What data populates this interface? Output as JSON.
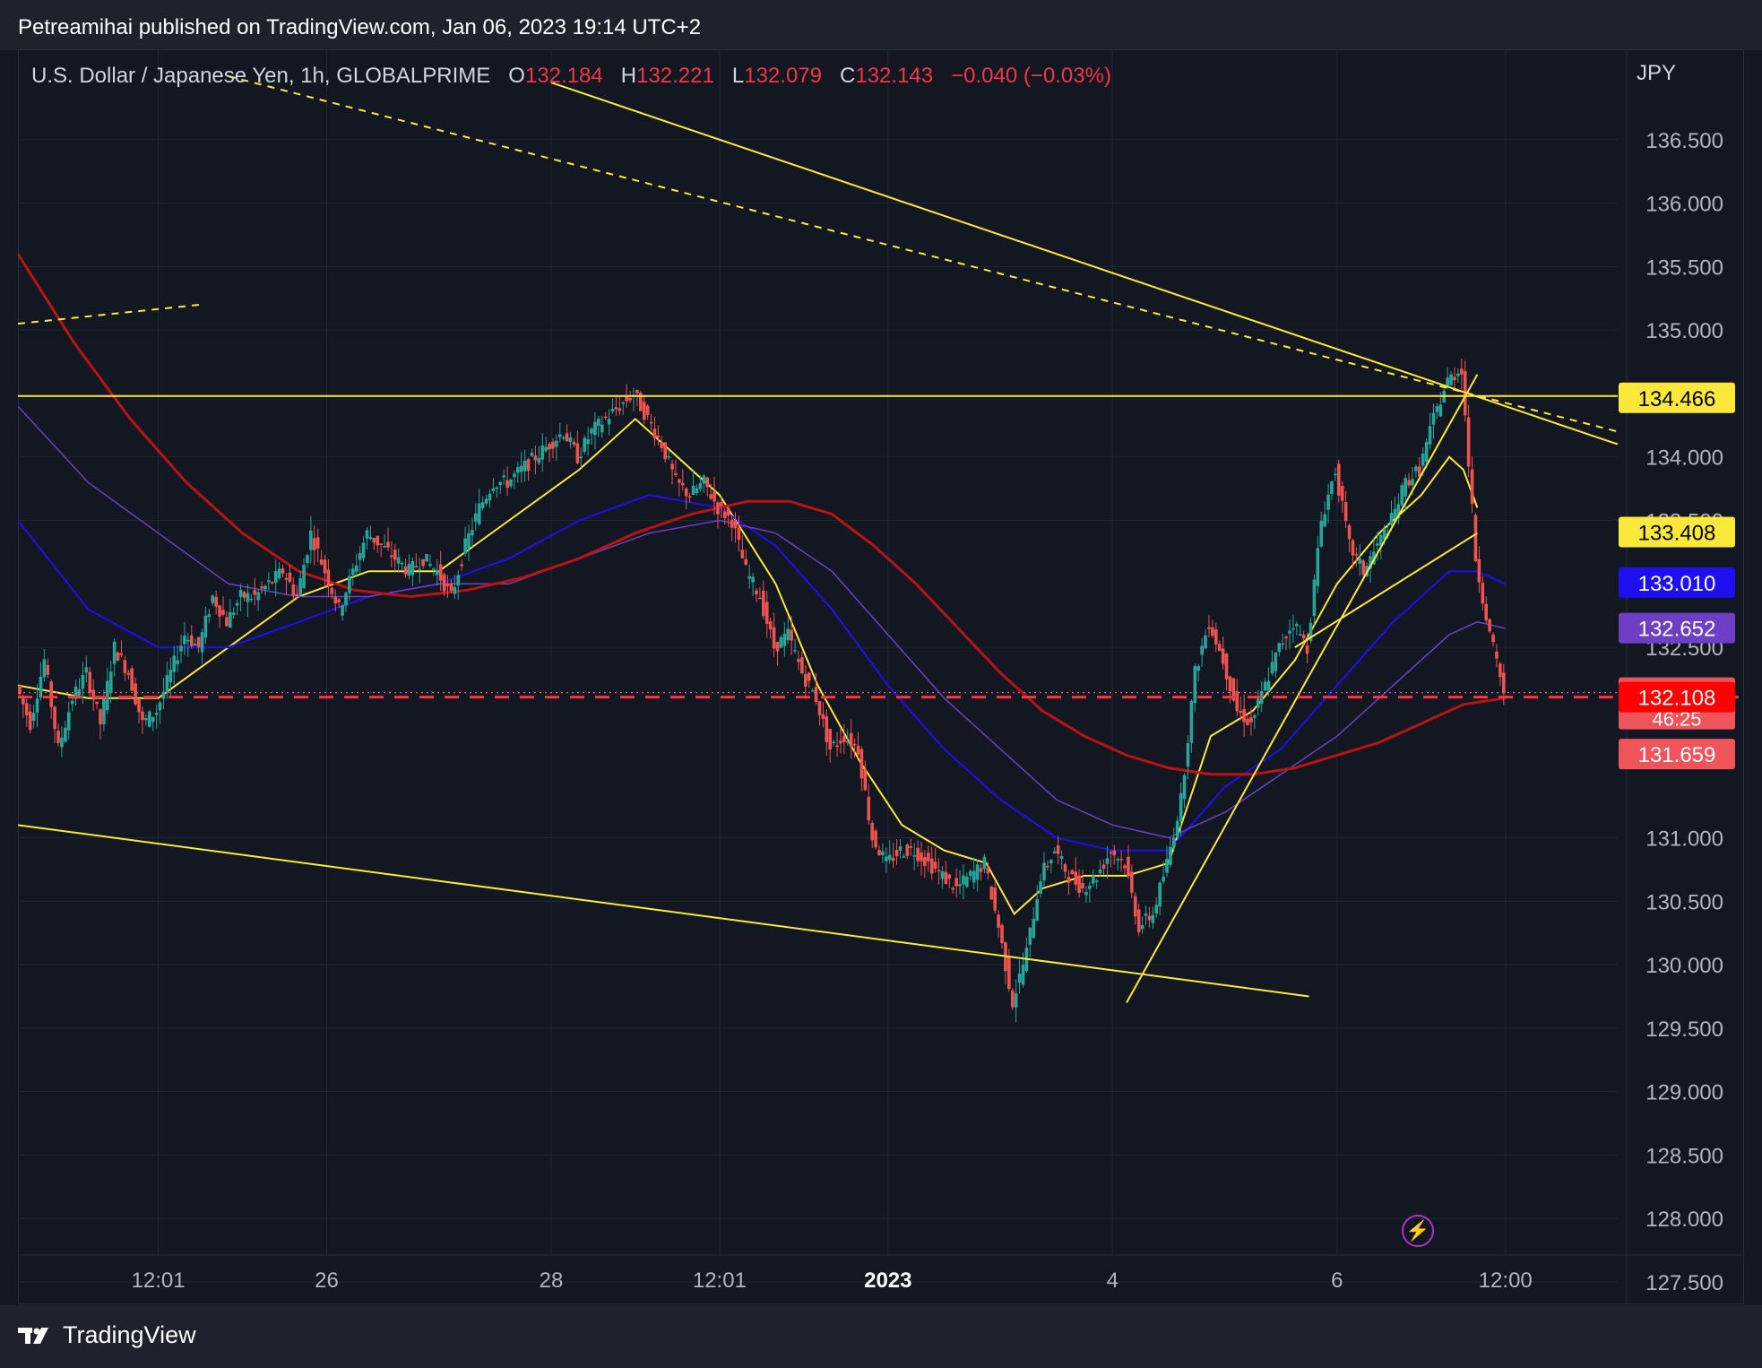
{
  "header": {
    "published_text": "Petreamihai published on TradingView.com, Jan 06, 2023 19:14 UTC+2"
  },
  "legend": {
    "symbol": "U.S. Dollar / Japanese Yen, 1h, GLOBALPRIME",
    "open_label": "O",
    "open": "132.184",
    "high_label": "H",
    "high": "132.221",
    "low_label": "L",
    "low": "132.079",
    "close_label": "C",
    "close": "132.143",
    "change": "−0.040 (−0.03%)"
  },
  "footer": {
    "brand": "TradingView"
  },
  "icons": {
    "brand_logo": "tradingview-logo-icon",
    "replay": "lightning-icon"
  },
  "chart_data": {
    "type": "candlestick",
    "currency": "JPY",
    "ylim": [
      127.5,
      137.0
    ],
    "y_ticks": [
      "136.500",
      "136.000",
      "135.500",
      "135.000",
      "134.000",
      "133.500",
      "132.500",
      "131.000",
      "130.500",
      "130.000",
      "129.500",
      "129.000",
      "128.500",
      "128.000",
      "127.500"
    ],
    "x_ticks": [
      {
        "label": "12:01",
        "t": 10
      },
      {
        "label": "26",
        "t": 22
      },
      {
        "label": "28",
        "t": 38
      },
      {
        "label": "12:01",
        "t": 50
      },
      {
        "label": "2023",
        "t": 62,
        "bold": true
      },
      {
        "label": "4",
        "t": 78
      },
      {
        "label": "6",
        "t": 94
      },
      {
        "label": "12:00",
        "t": 106
      }
    ],
    "x_range": [
      0,
      114
    ],
    "price_tags": [
      {
        "value": 134.466,
        "label": "134.466",
        "bg": "#fbe83b",
        "fg": "#000000"
      },
      {
        "value": 133.408,
        "label": "133.408",
        "bg": "#fbe83b",
        "fg": "#000000"
      },
      {
        "value": 133.01,
        "label": "133.010",
        "bg": "#1e0ff0",
        "fg": "#ffffff"
      },
      {
        "value": 132.652,
        "label": "132.652",
        "bg": "#6e3fc4",
        "fg": "#ffffff"
      },
      {
        "value": 132.143,
        "label": "132.143",
        "sub": "46:25",
        "bg": "#f0545b",
        "fg": "#ffffff"
      },
      {
        "value": 132.108,
        "label": "132.108",
        "bg": "#ff0000",
        "fg": "#ffffff"
      },
      {
        "value": 131.659,
        "label": "131.659",
        "bg": "#f0545b",
        "fg": "#ffffff"
      }
    ],
    "last_price": 132.143,
    "dashed_level": 132.108,
    "horizontal_level": 134.466,
    "price_path": [
      [
        0,
        132.2
      ],
      [
        1,
        131.9
      ],
      [
        2,
        132.4
      ],
      [
        3,
        131.7
      ],
      [
        4,
        132.1
      ],
      [
        5,
        132.3
      ],
      [
        6,
        131.9
      ],
      [
        7,
        132.5
      ],
      [
        8,
        132.3
      ],
      [
        9,
        131.9
      ],
      [
        10,
        132.0
      ],
      [
        11,
        132.3
      ],
      [
        12,
        132.6
      ],
      [
        13,
        132.5
      ],
      [
        14,
        132.9
      ],
      [
        15,
        132.7
      ],
      [
        16,
        132.9
      ],
      [
        17,
        132.9
      ],
      [
        18,
        133.0
      ],
      [
        19,
        133.1
      ],
      [
        20,
        132.9
      ],
      [
        21,
        133.4
      ],
      [
        22,
        133.1
      ],
      [
        23,
        132.8
      ],
      [
        24,
        133.1
      ],
      [
        25,
        133.4
      ],
      [
        26,
        133.3
      ],
      [
        27,
        133.2
      ],
      [
        28,
        133.1
      ],
      [
        29,
        133.2
      ],
      [
        30,
        133.1
      ],
      [
        31,
        132.9
      ],
      [
        32,
        133.3
      ],
      [
        33,
        133.6
      ],
      [
        34,
        133.8
      ],
      [
        35,
        133.8
      ],
      [
        36,
        133.9
      ],
      [
        37,
        134.0
      ],
      [
        38,
        134.1
      ],
      [
        39,
        134.2
      ],
      [
        40,
        134.0
      ],
      [
        41,
        134.2
      ],
      [
        42,
        134.3
      ],
      [
        43,
        134.4
      ],
      [
        44,
        134.5
      ],
      [
        45,
        134.3
      ],
      [
        46,
        134.1
      ],
      [
        47,
        133.8
      ],
      [
        48,
        133.7
      ],
      [
        49,
        133.8
      ],
      [
        50,
        133.6
      ],
      [
        51,
        133.5
      ],
      [
        52,
        133.1
      ],
      [
        53,
        132.9
      ],
      [
        54,
        132.5
      ],
      [
        55,
        132.6
      ],
      [
        56,
        132.3
      ],
      [
        57,
        132.1
      ],
      [
        58,
        131.7
      ],
      [
        59,
        131.8
      ],
      [
        60,
        131.7
      ],
      [
        61,
        131.0
      ],
      [
        62,
        130.8
      ],
      [
        63,
        130.9
      ],
      [
        64,
        130.9
      ],
      [
        65,
        130.8
      ],
      [
        66,
        130.7
      ],
      [
        67,
        130.6
      ],
      [
        68,
        130.7
      ],
      [
        69,
        130.8
      ],
      [
        70,
        130.3
      ],
      [
        71,
        129.7
      ],
      [
        72,
        130.1
      ],
      [
        73,
        130.7
      ],
      [
        74,
        130.9
      ],
      [
        75,
        130.7
      ],
      [
        76,
        130.6
      ],
      [
        77,
        130.7
      ],
      [
        78,
        130.9
      ],
      [
        79,
        130.8
      ],
      [
        80,
        130.3
      ],
      [
        81,
        130.4
      ],
      [
        82,
        130.8
      ],
      [
        83,
        131.3
      ],
      [
        84,
        132.3
      ],
      [
        85,
        132.7
      ],
      [
        86,
        132.4
      ],
      [
        87,
        132.0
      ],
      [
        88,
        131.9
      ],
      [
        89,
        132.2
      ],
      [
        90,
        132.5
      ],
      [
        91,
        132.7
      ],
      [
        92,
        132.5
      ],
      [
        93,
        133.5
      ],
      [
        94,
        133.9
      ],
      [
        95,
        133.3
      ],
      [
        96,
        133.1
      ],
      [
        97,
        133.3
      ],
      [
        98,
        133.5
      ],
      [
        99,
        133.8
      ],
      [
        100,
        133.9
      ],
      [
        101,
        134.3
      ],
      [
        102,
        134.6
      ],
      [
        103,
        134.7
      ],
      [
        104,
        133.2
      ],
      [
        105,
        132.6
      ],
      [
        106,
        132.15
      ]
    ],
    "series": [
      {
        "name": "",
        "kind": "ma",
        "color": "#fbe83b",
        "width": 2,
        "values": [
          [
            0,
            132.2
          ],
          [
            5,
            132.1
          ],
          [
            10,
            132.1
          ],
          [
            15,
            132.5
          ],
          [
            20,
            132.9
          ],
          [
            25,
            133.1
          ],
          [
            30,
            133.1
          ],
          [
            35,
            133.5
          ],
          [
            40,
            133.9
          ],
          [
            44,
            134.3
          ],
          [
            47,
            134.0
          ],
          [
            50,
            133.7
          ],
          [
            54,
            133.0
          ],
          [
            57,
            132.2
          ],
          [
            60,
            131.6
          ],
          [
            63,
            131.1
          ],
          [
            66,
            130.9
          ],
          [
            69,
            130.8
          ],
          [
            71,
            130.4
          ],
          [
            73,
            130.6
          ],
          [
            76,
            130.7
          ],
          [
            79,
            130.7
          ],
          [
            82,
            130.8
          ],
          [
            85,
            131.8
          ],
          [
            88,
            132.0
          ],
          [
            91,
            132.4
          ],
          [
            94,
            133.0
          ],
          [
            97,
            133.4
          ],
          [
            100,
            133.7
          ],
          [
            102,
            134.0
          ],
          [
            103,
            133.9
          ],
          [
            104,
            133.6
          ]
        ]
      },
      {
        "name": "",
        "kind": "ma",
        "color": "#1e0ff0",
        "width": 2,
        "values": [
          [
            0,
            133.5
          ],
          [
            5,
            132.8
          ],
          [
            10,
            132.5
          ],
          [
            15,
            132.5
          ],
          [
            20,
            132.7
          ],
          [
            25,
            132.9
          ],
          [
            30,
            133.0
          ],
          [
            35,
            133.2
          ],
          [
            40,
            133.5
          ],
          [
            45,
            133.7
          ],
          [
            50,
            133.6
          ],
          [
            54,
            133.3
          ],
          [
            58,
            132.8
          ],
          [
            62,
            132.2
          ],
          [
            66,
            131.7
          ],
          [
            70,
            131.3
          ],
          [
            74,
            131.0
          ],
          [
            78,
            130.9
          ],
          [
            82,
            130.9
          ],
          [
            86,
            131.4
          ],
          [
            90,
            131.7
          ],
          [
            94,
            132.2
          ],
          [
            98,
            132.7
          ],
          [
            102,
            133.1
          ],
          [
            104,
            133.1
          ],
          [
            106,
            133.0
          ]
        ]
      },
      {
        "name": "",
        "kind": "ma",
        "color": "#6e3fc4",
        "width": 1.5,
        "values": [
          [
            0,
            134.4
          ],
          [
            5,
            133.8
          ],
          [
            10,
            133.4
          ],
          [
            15,
            133.0
          ],
          [
            20,
            132.9
          ],
          [
            25,
            132.9
          ],
          [
            30,
            133.0
          ],
          [
            35,
            133.0
          ],
          [
            40,
            133.2
          ],
          [
            45,
            133.4
          ],
          [
            50,
            133.5
          ],
          [
            54,
            133.4
          ],
          [
            58,
            133.1
          ],
          [
            62,
            132.6
          ],
          [
            66,
            132.1
          ],
          [
            70,
            131.7
          ],
          [
            74,
            131.3
          ],
          [
            78,
            131.1
          ],
          [
            82,
            131.0
          ],
          [
            86,
            131.2
          ],
          [
            90,
            131.5
          ],
          [
            94,
            131.8
          ],
          [
            98,
            132.2
          ],
          [
            102,
            132.6
          ],
          [
            104,
            132.7
          ],
          [
            106,
            132.65
          ]
        ]
      },
      {
        "name": "",
        "kind": "ma",
        "color": "#b81414",
        "width": 3,
        "values": [
          [
            0,
            135.6
          ],
          [
            4,
            134.9
          ],
          [
            8,
            134.3
          ],
          [
            12,
            133.8
          ],
          [
            16,
            133.4
          ],
          [
            20,
            133.1
          ],
          [
            24,
            132.95
          ],
          [
            28,
            132.9
          ],
          [
            32,
            132.95
          ],
          [
            36,
            133.05
          ],
          [
            40,
            133.2
          ],
          [
            44,
            133.4
          ],
          [
            48,
            133.55
          ],
          [
            52,
            133.65
          ],
          [
            55,
            133.65
          ],
          [
            58,
            133.55
          ],
          [
            61,
            133.3
          ],
          [
            64,
            133.0
          ],
          [
            67,
            132.65
          ],
          [
            70,
            132.3
          ],
          [
            73,
            132.0
          ],
          [
            76,
            131.8
          ],
          [
            79,
            131.65
          ],
          [
            82,
            131.55
          ],
          [
            85,
            131.5
          ],
          [
            88,
            131.5
          ],
          [
            91,
            131.55
          ],
          [
            94,
            131.65
          ],
          [
            97,
            131.75
          ],
          [
            100,
            131.9
          ],
          [
            103,
            132.05
          ],
          [
            106,
            132.1
          ]
        ]
      }
    ],
    "trendlines": [
      {
        "from": [
          0,
          131.1
        ],
        "to": [
          92,
          129.75
        ],
        "color": "#fbe83b",
        "dash": false
      },
      {
        "from": [
          0,
          134.48
        ],
        "to": [
          114,
          134.48
        ],
        "color": "#fbe83b",
        "dash": false
      },
      {
        "from": [
          38,
          136.95
        ],
        "to": [
          114,
          134.1
        ],
        "color": "#fbe83b",
        "dash": false
      },
      {
        "from": [
          15,
          137.0
        ],
        "to": [
          114,
          134.2
        ],
        "color": "#fbe83b",
        "dash": true
      },
      {
        "from": [
          0,
          135.05
        ],
        "to": [
          13,
          135.2
        ],
        "color": "#fbe83b",
        "dash": true
      },
      {
        "from": [
          79,
          129.7
        ],
        "to": [
          104,
          134.65
        ],
        "color": "#fbe83b",
        "dash": false
      },
      {
        "from": [
          91,
          132.5
        ],
        "to": [
          104,
          133.4
        ],
        "color": "#fbe83b",
        "dash": false
      }
    ]
  }
}
